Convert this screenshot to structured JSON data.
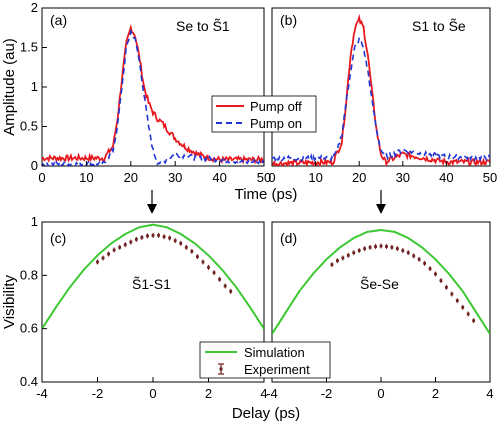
{
  "colors": {
    "pump_off": "#e8191e",
    "pump_on": "#2236d6",
    "simulation": "#3cc832",
    "experiment": "#6e1f1f"
  },
  "figure": {
    "top_xlabel": "Time (ps)",
    "top_ylabel": "Amplitude (au)",
    "bottom_xlabel": "Delay (ps)",
    "bottom_ylabel": "Visibility",
    "legend_top": {
      "pump_off": "Pump off",
      "pump_on": "Pump on"
    },
    "legend_bottom": {
      "simulation": "Simulation",
      "experiment": "Experiment"
    }
  },
  "chart_data": [
    {
      "type": "line",
      "panel": "(a)",
      "annotation": "Se to S̃1",
      "xlim": [
        0,
        50
      ],
      "ylim": [
        0,
        2
      ],
      "xticks": [
        0,
        10,
        20,
        30,
        40,
        50
      ],
      "yticks": [
        0,
        0.5,
        1,
        1.5,
        2
      ],
      "yticklabels": [
        "0",
        "0.5",
        "1",
        "1.5",
        "2"
      ],
      "series": [
        {
          "name": "Pump off",
          "x": [
            0,
            14,
            16,
            17,
            18,
            19,
            20,
            21,
            22,
            23,
            24,
            25,
            26,
            27,
            28,
            30,
            32,
            35,
            38,
            40,
            45,
            50
          ],
          "y": [
            0.1,
            0.1,
            0.25,
            0.6,
            1.1,
            1.55,
            1.75,
            1.65,
            1.35,
            1.0,
            0.8,
            0.68,
            0.6,
            0.55,
            0.48,
            0.35,
            0.25,
            0.15,
            0.1,
            0.08,
            0.08,
            0.08
          ]
        },
        {
          "name": "Pump on",
          "x": [
            0,
            14,
            16,
            17,
            18,
            19,
            20,
            21,
            22,
            23,
            24,
            25,
            26,
            27,
            28,
            30,
            35,
            40,
            45,
            50
          ],
          "y": [
            0.02,
            0.03,
            0.2,
            0.5,
            1.0,
            1.5,
            1.7,
            1.6,
            1.3,
            0.9,
            0.5,
            0.2,
            0.05,
            0.03,
            0.08,
            0.15,
            0.1,
            0.08,
            0.05,
            0.05
          ]
        }
      ]
    },
    {
      "type": "line",
      "panel": "(b)",
      "annotation": "S1 to S̃e",
      "xlim": [
        0,
        50
      ],
      "ylim": [
        0,
        2
      ],
      "xticks": [
        0,
        10,
        20,
        30,
        40,
        50
      ],
      "series": [
        {
          "name": "Pump off",
          "x": [
            0,
            14,
            16,
            17,
            18,
            19,
            20,
            21,
            22,
            23,
            24,
            25,
            26,
            28,
            30,
            35,
            40,
            50
          ],
          "y": [
            0.03,
            0.05,
            0.3,
            0.8,
            1.4,
            1.75,
            1.85,
            1.75,
            1.4,
            0.9,
            0.45,
            0.15,
            0.05,
            0.1,
            0.15,
            0.1,
            0.05,
            0.05
          ]
        },
        {
          "name": "Pump on",
          "x": [
            0,
            14,
            15,
            16,
            17,
            18,
            19,
            20,
            21,
            22,
            23,
            24,
            25,
            26,
            28,
            30,
            35,
            40,
            50
          ],
          "y": [
            0.1,
            0.1,
            0.2,
            0.4,
            0.8,
            1.2,
            1.5,
            1.6,
            1.5,
            1.2,
            0.8,
            0.45,
            0.2,
            0.12,
            0.15,
            0.2,
            0.15,
            0.12,
            0.1
          ]
        }
      ]
    },
    {
      "type": "scatter",
      "panel": "(c)",
      "annotation": "S̃1-S1",
      "xlim": [
        -4,
        4
      ],
      "ylim": [
        0.4,
        1.0
      ],
      "xticks": [
        -4,
        -2,
        0,
        2,
        4
      ],
      "yticks": [
        0.4,
        0.6,
        0.8,
        1.0
      ],
      "yticklabels": [
        "0.4",
        "0.6",
        "0.8",
        "1"
      ],
      "series": [
        {
          "name": "Simulation",
          "x": [
            -4,
            -3.5,
            -3,
            -2.5,
            -2,
            -1.5,
            -1,
            -0.5,
            0,
            0.5,
            1,
            1.5,
            2,
            2.5,
            3,
            3.5,
            4
          ],
          "y": [
            0.6,
            0.68,
            0.755,
            0.82,
            0.875,
            0.92,
            0.955,
            0.98,
            0.99,
            0.98,
            0.955,
            0.92,
            0.875,
            0.82,
            0.755,
            0.68,
            0.6
          ]
        },
        {
          "name": "Experiment",
          "x": [
            -2.0,
            -1.8,
            -1.6,
            -1.4,
            -1.2,
            -1.0,
            -0.8,
            -0.6,
            -0.4,
            -0.2,
            0.0,
            0.2,
            0.4,
            0.6,
            0.8,
            1.0,
            1.2,
            1.4,
            1.6,
            1.8,
            2.0,
            2.2,
            2.4,
            2.6,
            2.8
          ],
          "y": [
            0.85,
            0.865,
            0.88,
            0.895,
            0.905,
            0.915,
            0.925,
            0.935,
            0.942,
            0.948,
            0.95,
            0.95,
            0.945,
            0.94,
            0.93,
            0.92,
            0.905,
            0.89,
            0.87,
            0.85,
            0.83,
            0.81,
            0.785,
            0.76,
            0.74
          ]
        }
      ]
    },
    {
      "type": "scatter",
      "panel": "(d)",
      "annotation": "S̃e-Se",
      "xlim": [
        -4,
        4
      ],
      "ylim": [
        0.4,
        1.0
      ],
      "xticks": [
        -4,
        -2,
        0,
        2,
        4
      ],
      "series": [
        {
          "name": "Simulation",
          "x": [
            -4,
            -3.5,
            -3,
            -2.5,
            -2,
            -1.5,
            -1,
            -0.5,
            0,
            0.5,
            1,
            1.5,
            2,
            2.5,
            3,
            3.5,
            4
          ],
          "y": [
            0.58,
            0.66,
            0.74,
            0.805,
            0.86,
            0.905,
            0.94,
            0.963,
            0.97,
            0.963,
            0.94,
            0.905,
            0.86,
            0.805,
            0.74,
            0.66,
            0.58
          ]
        },
        {
          "name": "Experiment",
          "x": [
            -1.8,
            -1.6,
            -1.4,
            -1.2,
            -1.0,
            -0.8,
            -0.6,
            -0.4,
            -0.2,
            0.0,
            0.2,
            0.4,
            0.6,
            0.8,
            1.0,
            1.2,
            1.4,
            1.6,
            1.8,
            2.0,
            2.2,
            2.4,
            2.6,
            2.8,
            3.0,
            3.2,
            3.4
          ],
          "y": [
            0.84,
            0.855,
            0.865,
            0.875,
            0.885,
            0.893,
            0.9,
            0.905,
            0.908,
            0.91,
            0.908,
            0.905,
            0.9,
            0.893,
            0.885,
            0.873,
            0.86,
            0.845,
            0.825,
            0.805,
            0.78,
            0.755,
            0.73,
            0.705,
            0.68,
            0.655,
            0.63
          ]
        }
      ]
    }
  ]
}
